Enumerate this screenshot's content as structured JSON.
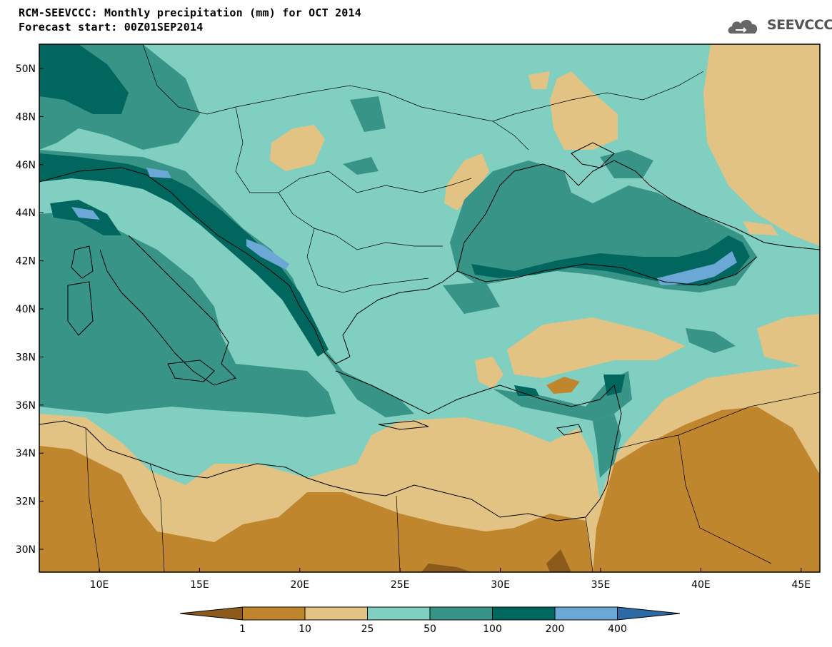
{
  "header": {
    "title": "RCM-SEEVCCC: Monthly precipitation (mm) for OCT 2014",
    "subtitle": "Forecast start: 00Z01SEP2014",
    "logo_text": "SEEVCCC",
    "logo_icon": "cloud-icon"
  },
  "map": {
    "lat_labels": [
      "50N",
      "48N",
      "46N",
      "44N",
      "42N",
      "40N",
      "38N",
      "36N",
      "34N",
      "32N",
      "30N"
    ],
    "lon_labels": [
      "10E",
      "15E",
      "20E",
      "25E",
      "30E",
      "35E",
      "40E",
      "45E"
    ]
  },
  "legend": {
    "labels": [
      "1",
      "10",
      "25",
      "50",
      "100",
      "200",
      "400"
    ],
    "colors": [
      "#8c5a1a",
      "#c0862e",
      "#e3c383",
      "#80cfc1",
      "#379487",
      "#00665e",
      "#6ba8d6",
      "#2b6aa4"
    ]
  }
}
